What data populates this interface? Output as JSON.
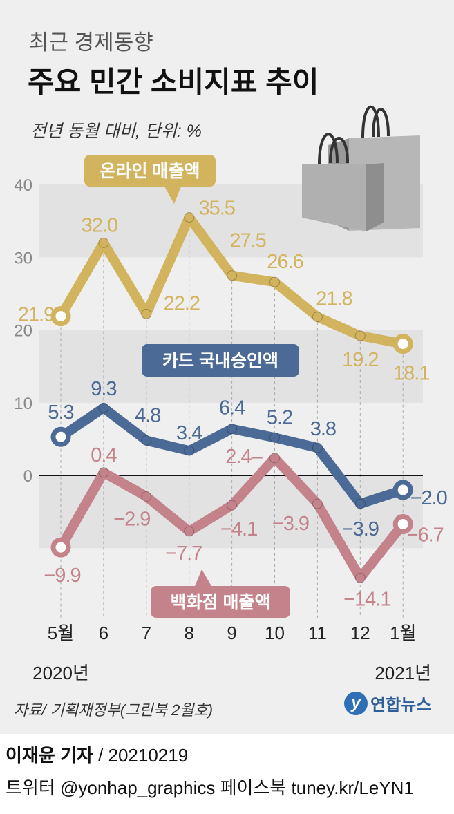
{
  "header": {
    "kicker": "최근 경제동향",
    "title": "주요 민간 소비지표 추이",
    "subtitle": "전년 동월 대비, 단위: %"
  },
  "footer": {
    "source": "자료/ 기획재정부(그린북 2월호)",
    "logo_text": "연합뉴스",
    "logo_mark": "y",
    "reporter": "이재윤 기자",
    "date": " / 20210219",
    "social": "트위터 @yonhap_graphics  페이스북 tuney.kr/LeYN1"
  },
  "chart_data": {
    "type": "line",
    "title": "주요 민간 소비지표 추이",
    "ylabel": "전년 동월 대비, 단위: %",
    "ylim": [
      -10,
      40
    ],
    "yticks": [
      "40",
      "30",
      "20",
      "10",
      "0"
    ],
    "ytick_values": [
      40,
      30,
      20,
      10,
      0
    ],
    "categories": [
      "5월",
      "6",
      "7",
      "8",
      "9",
      "10",
      "11",
      "12",
      "1월"
    ],
    "year_labels": {
      "first": "2020년",
      "last": "2021년"
    },
    "series": [
      {
        "name": "온라인 매출액",
        "color": "#d2b35e",
        "values": [
          21.9,
          32.0,
          22.2,
          35.5,
          27.5,
          26.6,
          21.8,
          19.2,
          18.1
        ],
        "labels": [
          "21.9",
          "32.0",
          "22.2",
          "35.5",
          "27.5",
          "26.6",
          "21.8",
          "19.2",
          "18.1"
        ]
      },
      {
        "name": "카드 국내승인액",
        "color": "#4b6a95",
        "values": [
          5.3,
          9.3,
          4.8,
          3.4,
          6.4,
          5.2,
          3.8,
          -3.9,
          -2.0
        ],
        "labels": [
          "5.3",
          "9.3",
          "4.8",
          "3.4",
          "6.4",
          "5.2",
          "3.8",
          "−3.9",
          "−2.0"
        ]
      },
      {
        "name": "백화점 매출액",
        "color": "#c4838b",
        "values": [
          -9.9,
          0.4,
          -2.9,
          -7.7,
          -4.1,
          2.4,
          -3.9,
          -14.1,
          -6.7
        ],
        "labels": [
          "−9.9",
          "0.4",
          "−2.9",
          "−7.7",
          "−4.1",
          "2.4–",
          "−3.9",
          "−14.1",
          "−6.7"
        ]
      }
    ]
  }
}
